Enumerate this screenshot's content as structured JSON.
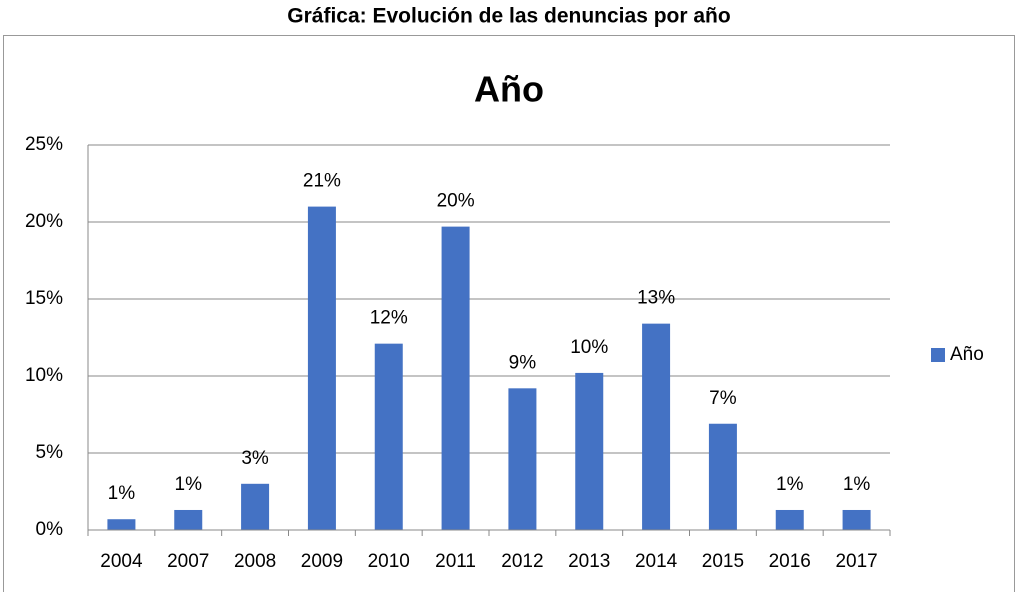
{
  "header": {
    "title": "Gráfica: Evolución de las denuncias por año"
  },
  "chart_data": {
    "type": "bar",
    "title": "Año",
    "categories": [
      "2004",
      "2007",
      "2008",
      "2009",
      "2010",
      "2011",
      "2012",
      "2013",
      "2014",
      "2015",
      "2016",
      "2017"
    ],
    "series": [
      {
        "name": "Año",
        "color": "#4472c4",
        "values": [
          0.7,
          1.3,
          3.0,
          21.0,
          12.1,
          19.7,
          9.2,
          10.2,
          13.4,
          6.9,
          1.3,
          1.3
        ],
        "value_labels": [
          "1%",
          "1%",
          "3%",
          "21%",
          "12%",
          "20%",
          "9%",
          "10%",
          "13%",
          "7%",
          "1%",
          "1%"
        ]
      }
    ],
    "ylim": [
      0,
      25
    ],
    "yticks": [
      {
        "value": 0,
        "label": "0%"
      },
      {
        "value": 5,
        "label": "5%"
      },
      {
        "value": 10,
        "label": "10%"
      },
      {
        "value": 15,
        "label": "15%"
      },
      {
        "value": 20,
        "label": "20%"
      },
      {
        "value": 25,
        "label": "25%"
      }
    ],
    "grid": true,
    "legend": "right"
  }
}
